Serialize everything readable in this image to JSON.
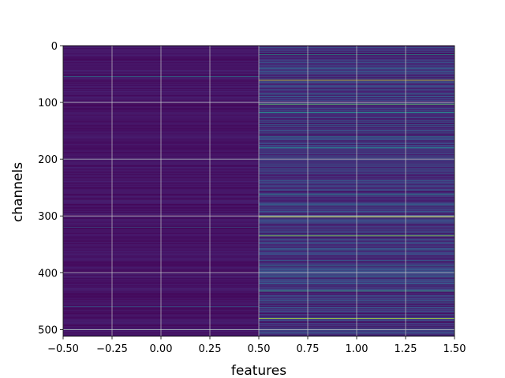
{
  "chart_data": {
    "type": "heatmap",
    "title": "",
    "xlabel": "features",
    "ylabel": "channels",
    "xlim": [
      -0.5,
      1.5
    ],
    "ylim": [
      512,
      0
    ],
    "y_inverted": true,
    "n_rows": 512,
    "n_columns": 2,
    "x_ticks": [
      {
        "value": -0.5,
        "label": "−0.50"
      },
      {
        "value": -0.25,
        "label": "−0.25"
      },
      {
        "value": 0.0,
        "label": "0.00"
      },
      {
        "value": 0.25,
        "label": "0.25"
      },
      {
        "value": 0.5,
        "label": "0.50"
      },
      {
        "value": 0.75,
        "label": "0.75"
      },
      {
        "value": 1.0,
        "label": "1.00"
      },
      {
        "value": 1.25,
        "label": "1.25"
      },
      {
        "value": 1.5,
        "label": "1.50"
      }
    ],
    "y_ticks": [
      {
        "value": 0,
        "label": "0"
      },
      {
        "value": 100,
        "label": "100"
      },
      {
        "value": 200,
        "label": "200"
      },
      {
        "value": 300,
        "label": "300"
      },
      {
        "value": 400,
        "label": "400"
      },
      {
        "value": 500,
        "label": "500"
      }
    ],
    "grid": true,
    "colormap": "viridis",
    "value_range": [
      0,
      1
    ],
    "columns": [
      {
        "x": 0,
        "base_value": 0.02,
        "bright_rows": [
          {
            "row": 55,
            "value": 0.45
          },
          {
            "row": 200,
            "value": 0.3
          },
          {
            "row": 320,
            "value": 0.28
          },
          {
            "row": 460,
            "value": 0.3
          },
          {
            "row": 500,
            "value": 0.35
          }
        ]
      },
      {
        "x": 1,
        "base_value": 0.06,
        "bright_rows": [
          {
            "row": 16,
            "value": 0.55
          },
          {
            "row": 40,
            "value": 0.35
          },
          {
            "row": 61,
            "value": 0.95
          },
          {
            "row": 85,
            "value": 0.4
          },
          {
            "row": 103,
            "value": 0.75
          },
          {
            "row": 117,
            "value": 0.55
          },
          {
            "row": 140,
            "value": 0.35
          },
          {
            "row": 160,
            "value": 0.4
          },
          {
            "row": 180,
            "value": 0.45
          },
          {
            "row": 200,
            "value": 0.55
          },
          {
            "row": 225,
            "value": 0.3
          },
          {
            "row": 262,
            "value": 0.5
          },
          {
            "row": 280,
            "value": 0.4
          },
          {
            "row": 302,
            "value": 0.95
          },
          {
            "row": 335,
            "value": 0.85
          },
          {
            "row": 360,
            "value": 0.35
          },
          {
            "row": 388,
            "value": 0.4
          },
          {
            "row": 407,
            "value": 0.35
          },
          {
            "row": 432,
            "value": 0.65
          },
          {
            "row": 452,
            "value": 0.4
          },
          {
            "row": 481,
            "value": 0.9
          }
        ]
      }
    ]
  }
}
